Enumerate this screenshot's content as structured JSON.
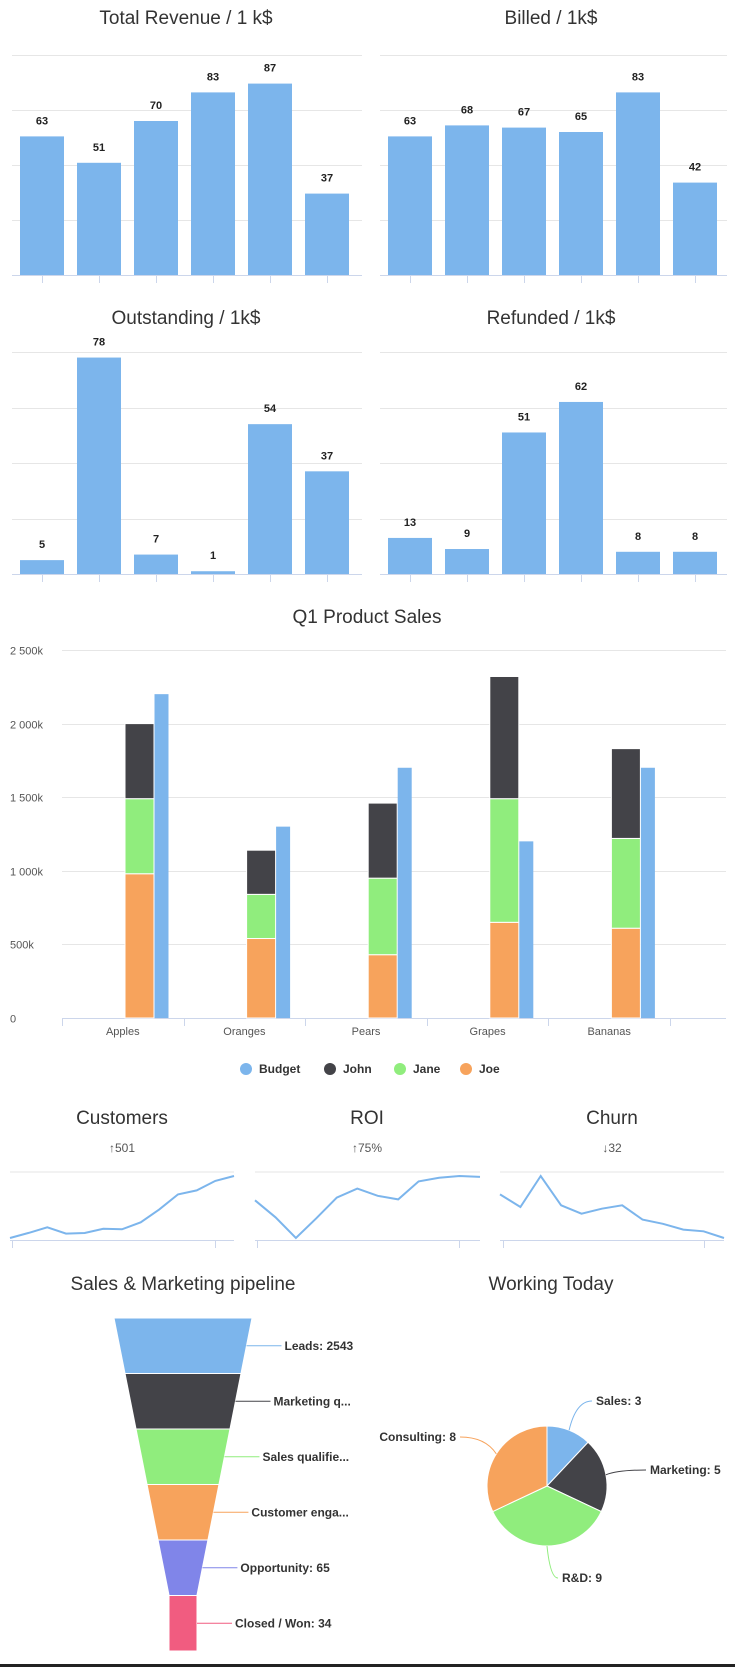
{
  "colors": {
    "blue": "#7cb5ec",
    "dark": "#434348",
    "green": "#90ed7d",
    "orange": "#f7a35c",
    "purple": "#8085e9",
    "pink": "#f15c80"
  },
  "chart_data": [
    {
      "id": "total-revenue",
      "type": "bar",
      "title": "Total Revenue / 1 k$",
      "values": [
        63,
        51,
        70,
        83,
        87,
        37
      ],
      "ylim": [
        0,
        100
      ],
      "grid": true
    },
    {
      "id": "billed",
      "type": "bar",
      "title": "Billed / 1k$",
      "values": [
        63,
        68,
        67,
        65,
        83,
        42
      ],
      "ylim": [
        0,
        100
      ],
      "grid": true
    },
    {
      "id": "outstanding",
      "type": "bar",
      "title": "Outstanding / 1k$",
      "values": [
        5,
        78,
        7,
        1,
        54,
        37
      ],
      "ylim": [
        0,
        80
      ],
      "grid": true
    },
    {
      "id": "refunded",
      "type": "bar",
      "title": "Refunded / 1k$",
      "values": [
        13,
        9,
        51,
        62,
        8,
        8
      ],
      "ylim": [
        0,
        80
      ],
      "grid": true
    },
    {
      "id": "q1-product-sales",
      "type": "bar",
      "title": "Q1 Product Sales",
      "stacked": true,
      "categories": [
        "Apples",
        "Oranges",
        "Pears",
        "Grapes",
        "Bananas"
      ],
      "y_ticks": [
        "0",
        "500k",
        "1 000k",
        "1 500k",
        "2 000k",
        "2 500k"
      ],
      "ylim": [
        0,
        2500000
      ],
      "series": [
        {
          "name": "Joe",
          "values": [
            980000,
            540000,
            430000,
            650000,
            610000
          ],
          "color": "#f7a35c"
        },
        {
          "name": "Jane",
          "values": [
            510000,
            300000,
            520000,
            840000,
            610000
          ],
          "color": "#90ed7d"
        },
        {
          "name": "John",
          "values": [
            510000,
            300000,
            510000,
            830000,
            610000
          ],
          "color": "#434348"
        }
      ],
      "budget": {
        "name": "Budget",
        "values": [
          2200000,
          1300000,
          1700000,
          1200000,
          1700000
        ],
        "color": "#7cb5ec"
      },
      "legend": {
        "position": "bottom",
        "items": [
          "Budget",
          "John",
          "Jane",
          "Joe"
        ]
      }
    },
    {
      "id": "customers",
      "type": "line",
      "title": "Customers",
      "subtitle": "↑501",
      "values": [
        18,
        70,
        128,
        63,
        69,
        112,
        107,
        179,
        311,
        465,
        506,
        604,
        654
      ]
    },
    {
      "id": "roi",
      "type": "line",
      "title": "ROI",
      "subtitle": "↑75%",
      "values": [
        47,
        28,
        5,
        27,
        50,
        60,
        52,
        48,
        68,
        72,
        74,
        73
      ]
    },
    {
      "id": "churn",
      "type": "line",
      "title": "Churn",
      "subtitle": "↓32",
      "values": [
        47,
        32,
        69,
        34,
        24,
        30,
        34,
        17,
        12,
        5,
        3,
        -5
      ]
    },
    {
      "id": "pipeline",
      "type": "funnel",
      "title": "Sales & Marketing pipeline",
      "labels": [
        "Leads: 2543",
        "Marketing q...",
        "Sales qualifie...",
        "Customer enga...",
        "Opportunity: 65",
        "Closed / Won: 34"
      ],
      "colors": [
        "#7cb5ec",
        "#434348",
        "#90ed7d",
        "#f7a35c",
        "#8085e9",
        "#f15c80"
      ]
    },
    {
      "id": "working-today",
      "type": "pie",
      "title": "Working Today",
      "slices": [
        {
          "label": "Sales: 3",
          "value": 3,
          "color": "#7cb5ec"
        },
        {
          "label": "Marketing: 5",
          "value": 5,
          "color": "#434348"
        },
        {
          "label": "R&D: 9",
          "value": 9,
          "color": "#90ed7d"
        },
        {
          "label": "Consulting: 8",
          "value": 8,
          "color": "#f7a35c"
        }
      ]
    }
  ]
}
